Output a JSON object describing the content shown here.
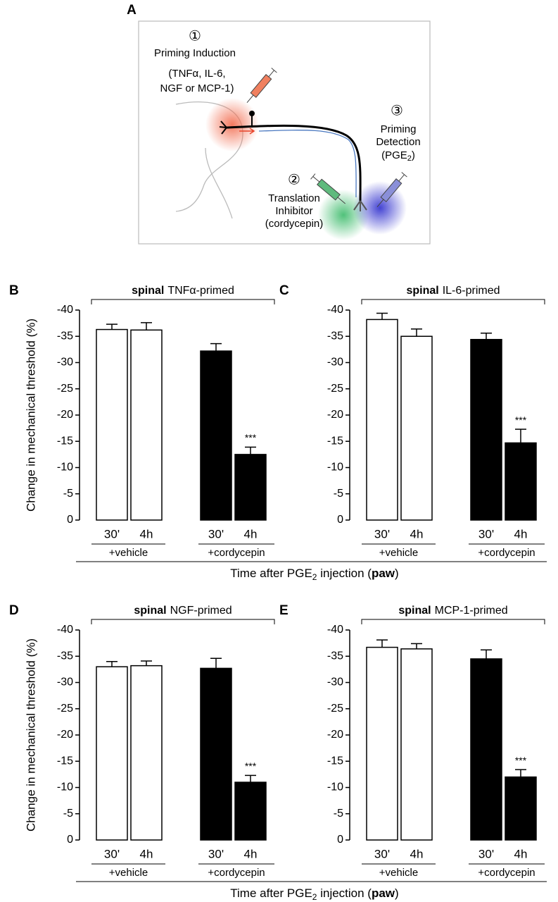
{
  "diagram": {
    "panel": "A",
    "step1": "①",
    "step1_label": [
      "Priming Induction",
      "(TNFα, IL-6,",
      "NGF or MCP-1)"
    ],
    "step2": "②",
    "step2_label": [
      "Translation",
      "Inhibitor",
      "(cordycepin)"
    ],
    "step3": "③",
    "step3_label": [
      "Priming",
      "Detection"
    ],
    "step3_agent": [
      "(PGE",
      "2",
      ")"
    ]
  },
  "chart_data": [
    {
      "type": "bar",
      "panel": "B",
      "title_bold": "spinal",
      "title": "TNFα-primed",
      "categories": [
        "30'",
        "4h",
        "30'",
        "4h"
      ],
      "groups": [
        "+vehicle",
        "+cordycepin"
      ],
      "values": [
        -36.3,
        -36.2,
        -32.2,
        -12.5
      ],
      "errors": [
        1.0,
        1.4,
        1.4,
        1.4
      ],
      "colors": [
        "#ffffff",
        "#ffffff",
        "#000000",
        "#000000"
      ],
      "significance": [
        null,
        null,
        null,
        "***"
      ],
      "ylim": [
        0,
        -40
      ],
      "yticks": [
        0,
        -5,
        -10,
        -15,
        -20,
        -25,
        -30,
        -35,
        -40
      ],
      "ylabel": "Change in mechanical threshold (%)",
      "xlabel": [
        "Time after PGE",
        "2",
        " injection (",
        "paw",
        ")"
      ]
    },
    {
      "type": "bar",
      "panel": "C",
      "title_bold": "spinal",
      "title": "IL-6-primed",
      "categories": [
        "30'",
        "4h",
        "30'",
        "4h"
      ],
      "groups": [
        "+vehicle",
        "+cordycepin"
      ],
      "values": [
        -38.2,
        -35.0,
        -34.4,
        -14.7
      ],
      "errors": [
        1.2,
        1.4,
        1.2,
        2.6
      ],
      "colors": [
        "#ffffff",
        "#ffffff",
        "#000000",
        "#000000"
      ],
      "significance": [
        null,
        null,
        null,
        "***"
      ],
      "ylim": [
        0,
        -40
      ],
      "yticks": [
        0,
        -5,
        -10,
        -15,
        -20,
        -25,
        -30,
        -35,
        -40
      ]
    },
    {
      "type": "bar",
      "panel": "D",
      "title_bold": "spinal",
      "title": "NGF-primed",
      "categories": [
        "30'",
        "4h",
        "30'",
        "4h"
      ],
      "groups": [
        "+vehicle",
        "+cordycepin"
      ],
      "values": [
        -33.0,
        -33.2,
        -32.7,
        -11.0
      ],
      "errors": [
        1.0,
        0.9,
        1.9,
        1.3
      ],
      "colors": [
        "#ffffff",
        "#ffffff",
        "#000000",
        "#000000"
      ],
      "significance": [
        null,
        null,
        null,
        "***"
      ],
      "ylim": [
        0,
        -40
      ],
      "yticks": [
        0,
        -5,
        -10,
        -15,
        -20,
        -25,
        -30,
        -35,
        -40
      ],
      "ylabel": "Change in mechanical threshold (%)",
      "xlabel": [
        "Time after PGE",
        "2",
        " injection (",
        "paw",
        ")"
      ]
    },
    {
      "type": "bar",
      "panel": "E",
      "title_bold": "spinal",
      "title": "MCP-1-primed",
      "categories": [
        "30'",
        "4h",
        "30'",
        "4h"
      ],
      "groups": [
        "+vehicle",
        "+cordycepin"
      ],
      "values": [
        -36.7,
        -36.4,
        -34.5,
        -12.0
      ],
      "errors": [
        1.4,
        1.0,
        1.7,
        1.4
      ],
      "colors": [
        "#ffffff",
        "#ffffff",
        "#000000",
        "#000000"
      ],
      "significance": [
        null,
        null,
        null,
        "***"
      ],
      "ylim": [
        0,
        -40
      ],
      "yticks": [
        0,
        -5,
        -10,
        -15,
        -20,
        -25,
        -30,
        -35,
        -40
      ]
    }
  ]
}
